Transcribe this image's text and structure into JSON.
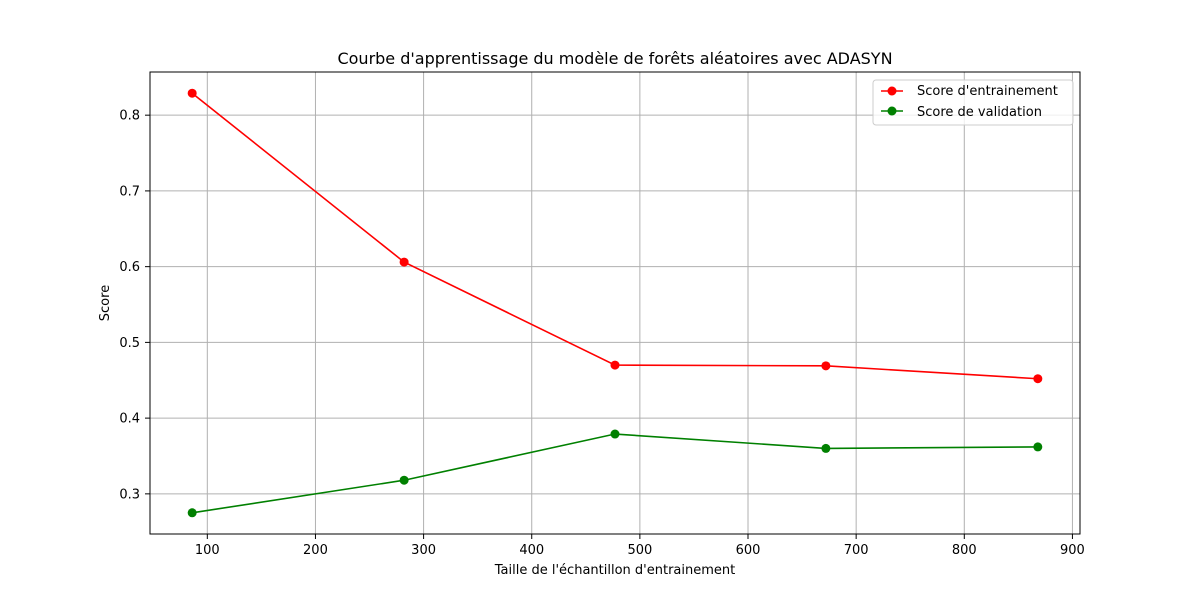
{
  "chart_data": {
    "type": "line",
    "title": "Courbe d'apprentissage du modèle de forêts aléatoires avec ADASYN",
    "xlabel": "Taille de l'échantillon d'entrainement",
    "ylabel": "Score",
    "x": [
      86,
      282,
      477,
      672,
      868
    ],
    "series": [
      {
        "name": "Score d'entrainement",
        "color": "#ff0000",
        "values": [
          0.829,
          0.606,
          0.47,
          0.469,
          0.452
        ]
      },
      {
        "name": "Score de validation",
        "color": "#008000",
        "values": [
          0.275,
          0.318,
          0.379,
          0.36,
          0.362
        ]
      }
    ],
    "xlim": [
      47,
      907
    ],
    "ylim": [
      0.247,
      0.857
    ],
    "xticks": [
      100,
      200,
      300,
      400,
      500,
      600,
      700,
      800,
      900
    ],
    "xtick_labels": [
      "100",
      "200",
      "300",
      "400",
      "500",
      "600",
      "700",
      "800",
      "900"
    ],
    "yticks": [
      0.3,
      0.4,
      0.5,
      0.6,
      0.7,
      0.8
    ],
    "ytick_labels": [
      "0.3",
      "0.4",
      "0.5",
      "0.6",
      "0.7",
      "0.8"
    ],
    "grid": true,
    "legend_position": "top-right",
    "marker": "circle"
  }
}
